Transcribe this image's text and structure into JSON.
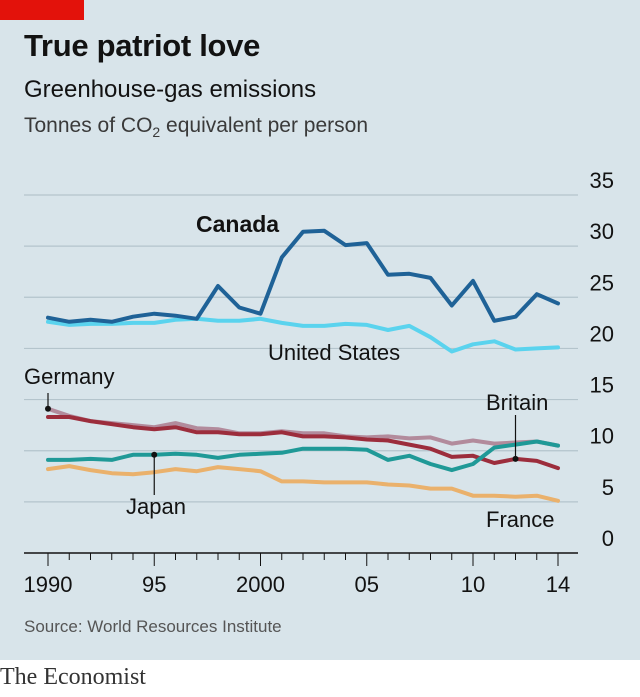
{
  "header": {
    "title": "True patriot love",
    "subtitle": "Greenhouse-gas emissions",
    "unit_main": "Tonnes of CO",
    "unit_sub": "2",
    "unit_rest": " equivalent per person"
  },
  "source": "Source: World Resources Institute",
  "brand": "The Economist",
  "colors": {
    "brand_red": "#e3120b",
    "panel": "#d8e4ea"
  },
  "chart_data": {
    "type": "line",
    "title": "True patriot love",
    "subtitle": "Greenhouse-gas emissions",
    "ylabel": "Tonnes of CO2 equivalent per person",
    "x": [
      1990,
      1991,
      1992,
      1993,
      1994,
      1995,
      1996,
      1997,
      1998,
      1999,
      2000,
      2001,
      2002,
      2003,
      2004,
      2005,
      2006,
      2007,
      2008,
      2009,
      2010,
      2011,
      2012,
      2013,
      2014
    ],
    "x_tick_values": [
      1990,
      1995,
      2000,
      2005,
      2010,
      2014
    ],
    "x_tick_labels": [
      "1990",
      "95",
      "2000",
      "05",
      "10",
      "14"
    ],
    "ylim": [
      0,
      35
    ],
    "y_ticks": [
      0,
      5,
      10,
      15,
      20,
      25,
      30,
      35
    ],
    "y_tick_labels": [
      "0",
      "5",
      "10",
      "15",
      "20",
      "25",
      "30",
      "35"
    ],
    "grid": true,
    "series": [
      {
        "name": "Canada",
        "color": "#1f6297",
        "values": [
          23.0,
          22.6,
          22.8,
          22.6,
          23.1,
          23.4,
          23.2,
          22.9,
          26.1,
          24.0,
          23.4,
          28.9,
          31.4,
          31.5,
          30.1,
          30.3,
          27.2,
          27.3,
          26.9,
          24.2,
          26.6,
          22.7,
          23.1,
          25.3,
          24.4
        ]
      },
      {
        "name": "United States",
        "color": "#5ad3ee",
        "values": [
          22.6,
          22.3,
          22.4,
          22.4,
          22.5,
          22.5,
          22.8,
          22.9,
          22.7,
          22.7,
          22.9,
          22.5,
          22.2,
          22.2,
          22.4,
          22.3,
          21.8,
          22.2,
          21.1,
          19.7,
          20.4,
          20.7,
          19.9,
          20.0,
          20.1
        ]
      },
      {
        "name": "Germany",
        "color": "#b28b9c",
        "values": [
          14.1,
          13.4,
          12.9,
          12.7,
          12.5,
          12.3,
          12.7,
          12.2,
          12.1,
          11.7,
          11.7,
          11.9,
          11.7,
          11.7,
          11.4,
          11.3,
          11.4,
          11.2,
          11.3,
          10.7,
          11.0,
          10.7,
          10.8,
          10.9,
          10.5
        ]
      },
      {
        "name": "Britain",
        "color": "#9c2d3c",
        "values": [
          13.3,
          13.3,
          12.9,
          12.6,
          12.3,
          12.1,
          12.3,
          11.8,
          11.8,
          11.6,
          11.6,
          11.8,
          11.4,
          11.4,
          11.3,
          11.1,
          11.0,
          10.6,
          10.2,
          9.4,
          9.5,
          8.8,
          9.2,
          9.0,
          8.3
        ]
      },
      {
        "name": "Japan",
        "color": "#1f9997",
        "values": [
          9.1,
          9.1,
          9.2,
          9.1,
          9.6,
          9.6,
          9.7,
          9.6,
          9.3,
          9.6,
          9.7,
          9.8,
          10.2,
          10.2,
          10.2,
          10.1,
          9.1,
          9.5,
          8.7,
          8.1,
          8.7,
          10.3,
          10.6,
          10.9,
          10.5
        ]
      },
      {
        "name": "France",
        "color": "#eab16c",
        "values": [
          8.2,
          8.5,
          8.1,
          7.8,
          7.7,
          7.9,
          8.2,
          8.0,
          8.4,
          8.2,
          8.0,
          7.0,
          7.0,
          6.9,
          6.9,
          6.9,
          6.7,
          6.6,
          6.3,
          6.3,
          5.6,
          5.6,
          5.5,
          5.6,
          5.1
        ]
      }
    ]
  }
}
